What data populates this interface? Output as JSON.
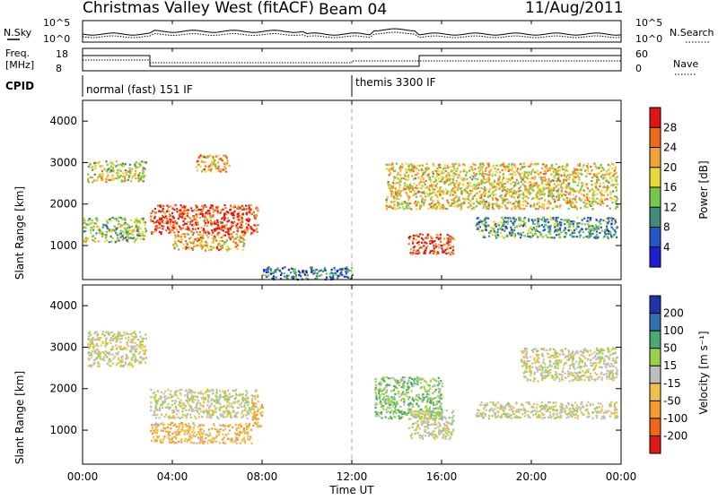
{
  "header": {
    "station": "Christmas Valley West (fitACF)",
    "beam": "Beam 04",
    "date": "11/Aug/2011"
  },
  "summary_labels": {
    "nsky": "N.Sky",
    "nsearch": "N.Search",
    "freq_line1": "Freq.",
    "freq_line2": "[MHz]",
    "nave": "Nave",
    "cpid": "CPID",
    "noise_ticks": [
      "10^5",
      "10^0"
    ],
    "freq_ticks": [
      "18",
      "8"
    ],
    "nave_ticks": [
      "60",
      "0"
    ]
  },
  "cpid_modes": [
    {
      "label": "normal (fast) 151 IF",
      "start_hour": 0
    },
    {
      "label": "themis 3300 IF",
      "start_hour": 12
    }
  ],
  "axes": {
    "xlabel": "Time UT",
    "xticks": [
      "00:00",
      "04:00",
      "08:00",
      "12:00",
      "16:00",
      "20:00",
      "00:00"
    ],
    "ylabel": "Slant Range [km]",
    "yticks": [
      "1000",
      "2000",
      "3000",
      "4000"
    ]
  },
  "power_scale": {
    "title": "Power [dB]",
    "labels": [
      "4",
      "8",
      "12",
      "16",
      "20",
      "24",
      "28"
    ],
    "colors": [
      "#1f1fd0",
      "#2255c8",
      "#3f8a78",
      "#76c84a",
      "#e8d83a",
      "#f2a338",
      "#ee6a1a",
      "#e01616"
    ]
  },
  "velocity_scale": {
    "title": "Velocity [m s⁻¹]",
    "labels": [
      "200",
      "100",
      "50",
      "15",
      "-15",
      "-50",
      "-100",
      "-200"
    ],
    "colors": [
      "#2233a8",
      "#2f6fb2",
      "#4aa872",
      "#9ad14a",
      "#bdbdbd",
      "#f0c24a",
      "#f39a32",
      "#ee6618",
      "#e01a12"
    ]
  },
  "chart_data": {
    "type": "heatmap",
    "title": "Christmas Valley West (fitACF) Beam 04 11/Aug/2011",
    "xlabel": "Time UT",
    "ylabel": "Slant Range [km]",
    "xlim": [
      0,
      24
    ],
    "ylim": [
      180,
      4500
    ],
    "panels": [
      {
        "name": "Power",
        "unit": "dB",
        "colorbar_range": [
          0,
          30
        ],
        "echo_regions": [
          {
            "t": [
              0.2,
              2.8
            ],
            "range": [
              2550,
              3050
            ],
            "value": 16
          },
          {
            "t": [
              0.0,
              2.8
            ],
            "range": [
              1100,
              1700
            ],
            "value": 14
          },
          {
            "t": [
              3.0,
              7.8
            ],
            "range": [
              1300,
              2000
            ],
            "value": 26
          },
          {
            "t": [
              4.0,
              7.2
            ],
            "range": [
              900,
              1300
            ],
            "value": 20
          },
          {
            "t": [
              5.0,
              6.5
            ],
            "range": [
              2800,
              3200
            ],
            "value": 20
          },
          {
            "t": [
              13.5,
              23.8
            ],
            "range": [
              1900,
              3000
            ],
            "value": 18
          },
          {
            "t": [
              14.5,
              16.5
            ],
            "range": [
              800,
              1300
            ],
            "value": 26
          },
          {
            "t": [
              17.5,
              23.8
            ],
            "range": [
              1200,
              1700
            ],
            "value": 10
          },
          {
            "t": [
              8.0,
              12.0
            ],
            "range": [
              200,
              500
            ],
            "value": 8
          }
        ]
      },
      {
        "name": "Velocity",
        "unit": "m s-1",
        "colorbar_range": [
          -250,
          250
        ],
        "echo_regions": [
          {
            "t": [
              0.2,
              2.8
            ],
            "range": [
              2550,
              3400
            ],
            "value": 0
          },
          {
            "t": [
              3.0,
              7.8
            ],
            "range": [
              1300,
              2000
            ],
            "value": 0
          },
          {
            "t": [
              7.5,
              8.0
            ],
            "range": [
              1100,
              1700
            ],
            "value": -60
          },
          {
            "t": [
              3.0,
              7.5
            ],
            "range": [
              700,
              1200
            ],
            "value": -40
          },
          {
            "t": [
              13.0,
              16.0
            ],
            "range": [
              1300,
              2300
            ],
            "value": 40
          },
          {
            "t": [
              14.5,
              16.5
            ],
            "range": [
              800,
              1500
            ],
            "value": 0
          },
          {
            "t": [
              17.5,
              23.8
            ],
            "range": [
              1300,
              1700
            ],
            "value": 0
          },
          {
            "t": [
              19.5,
              23.8
            ],
            "range": [
              2200,
              3000
            ],
            "value": 0
          }
        ]
      }
    ]
  }
}
